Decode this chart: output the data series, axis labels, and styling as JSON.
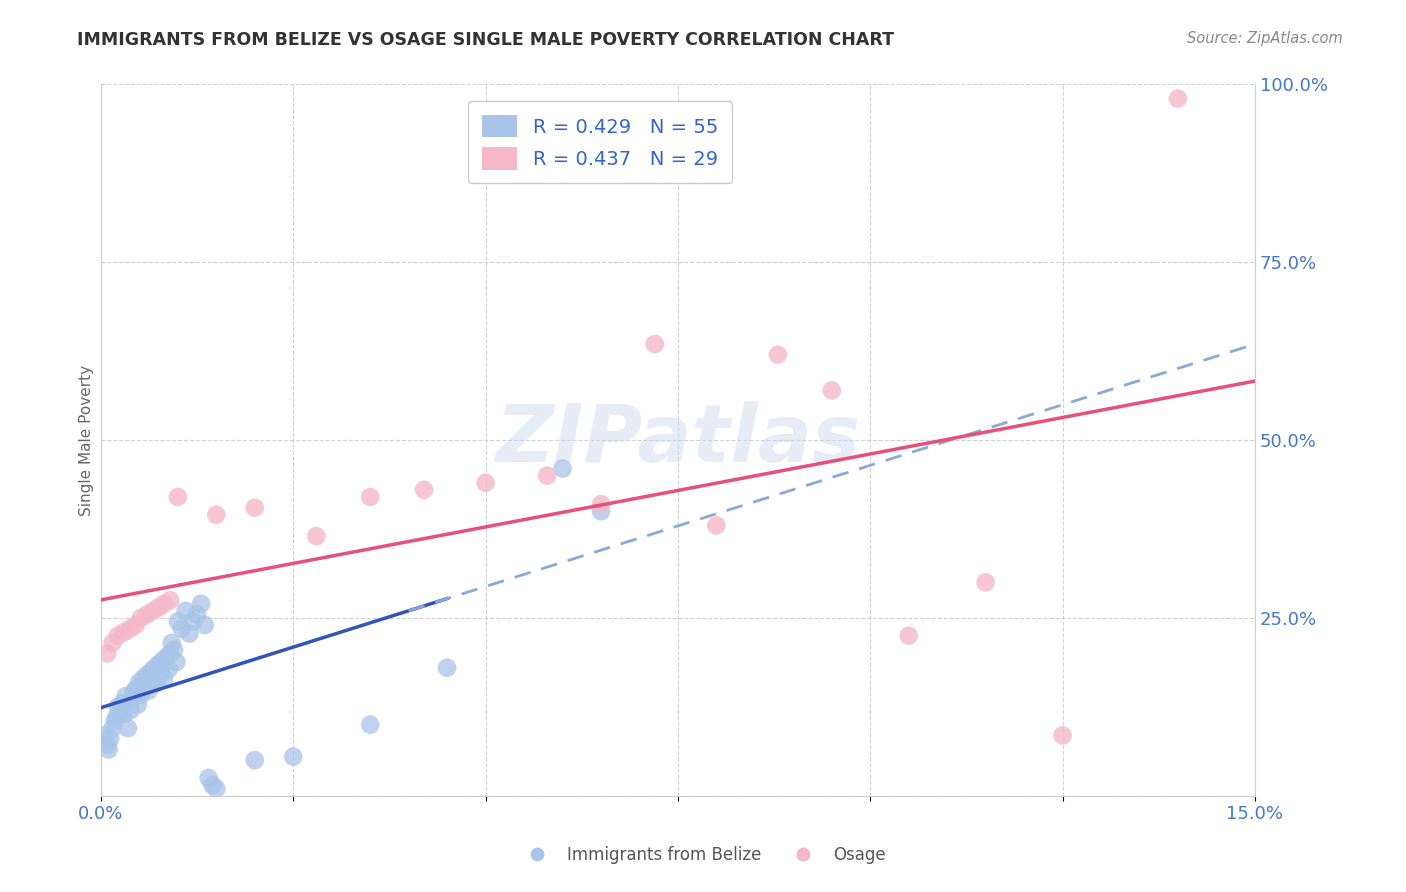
{
  "title": "IMMIGRANTS FROM BELIZE VS OSAGE SINGLE MALE POVERTY CORRELATION CHART",
  "source": "Source: ZipAtlas.com",
  "xlabel_blue": "Immigrants from Belize",
  "xlabel_pink": "Osage",
  "ylabel": "Single Male Poverty",
  "xmin": 0.0,
  "xmax": 0.15,
  "ymin": 0.0,
  "ymax": 1.0,
  "yticks": [
    0.0,
    0.25,
    0.5,
    0.75,
    1.0
  ],
  "ytick_labels": [
    "",
    "25.0%",
    "50.0%",
    "75.0%",
    "100.0%"
  ],
  "r_blue": 0.429,
  "n_blue": 55,
  "r_pink": 0.437,
  "n_pink": 29,
  "blue_color": "#a8c4e8",
  "pink_color": "#f5b8c8",
  "trend_blue_solid_color": "#3355bb",
  "trend_blue_dashed_color": "#88aad4",
  "trend_pink_color": "#e8507a",
  "background_color": "#ffffff",
  "grid_color": "#cccccc",
  "tick_color": "#4477cc",
  "title_color": "#333333",
  "source_color": "#888888",
  "ylabel_color": "#666666",
  "legend_label_color": "#3366cc",
  "blue_points_x": [
    0.0005,
    0.0008,
    0.001,
    0.0012,
    0.0015,
    0.0018,
    0.002,
    0.0022,
    0.0025,
    0.0028,
    0.003,
    0.0032,
    0.0035,
    0.0038,
    0.004,
    0.0042,
    0.0045,
    0.0048,
    0.005,
    0.0052,
    0.0055,
    0.0058,
    0.006,
    0.0062,
    0.0065,
    0.0068,
    0.007,
    0.0072,
    0.0075,
    0.0078,
    0.008,
    0.0082,
    0.0085,
    0.0088,
    0.009,
    0.0092,
    0.0095,
    0.0098,
    0.01,
    0.0105,
    0.011,
    0.0115,
    0.012,
    0.0125,
    0.013,
    0.0135,
    0.014,
    0.0145,
    0.015,
    0.02,
    0.025,
    0.035,
    0.045,
    0.06,
    0.065
  ],
  "blue_points_y": [
    0.085,
    0.072,
    0.065,
    0.08,
    0.095,
    0.105,
    0.11,
    0.125,
    0.118,
    0.13,
    0.115,
    0.14,
    0.095,
    0.12,
    0.135,
    0.145,
    0.15,
    0.128,
    0.16,
    0.142,
    0.165,
    0.155,
    0.17,
    0.148,
    0.175,
    0.162,
    0.18,
    0.158,
    0.185,
    0.172,
    0.19,
    0.165,
    0.195,
    0.178,
    0.2,
    0.215,
    0.205,
    0.188,
    0.245,
    0.235,
    0.26,
    0.228,
    0.245,
    0.255,
    0.27,
    0.24,
    0.025,
    0.015,
    0.01,
    0.05,
    0.055,
    0.1,
    0.18,
    0.46,
    0.4
  ],
  "pink_points_x": [
    0.0008,
    0.0015,
    0.0022,
    0.003,
    0.0038,
    0.0045,
    0.0052,
    0.006,
    0.0068,
    0.0075,
    0.0082,
    0.009,
    0.01,
    0.015,
    0.02,
    0.028,
    0.035,
    0.042,
    0.05,
    0.058,
    0.065,
    0.072,
    0.08,
    0.088,
    0.095,
    0.105,
    0.115,
    0.125,
    0.14
  ],
  "pink_points_y": [
    0.2,
    0.215,
    0.225,
    0.23,
    0.235,
    0.24,
    0.25,
    0.255,
    0.26,
    0.265,
    0.27,
    0.275,
    0.42,
    0.395,
    0.405,
    0.365,
    0.42,
    0.43,
    0.44,
    0.45,
    0.41,
    0.635,
    0.38,
    0.62,
    0.57,
    0.225,
    0.3,
    0.085,
    0.98
  ]
}
